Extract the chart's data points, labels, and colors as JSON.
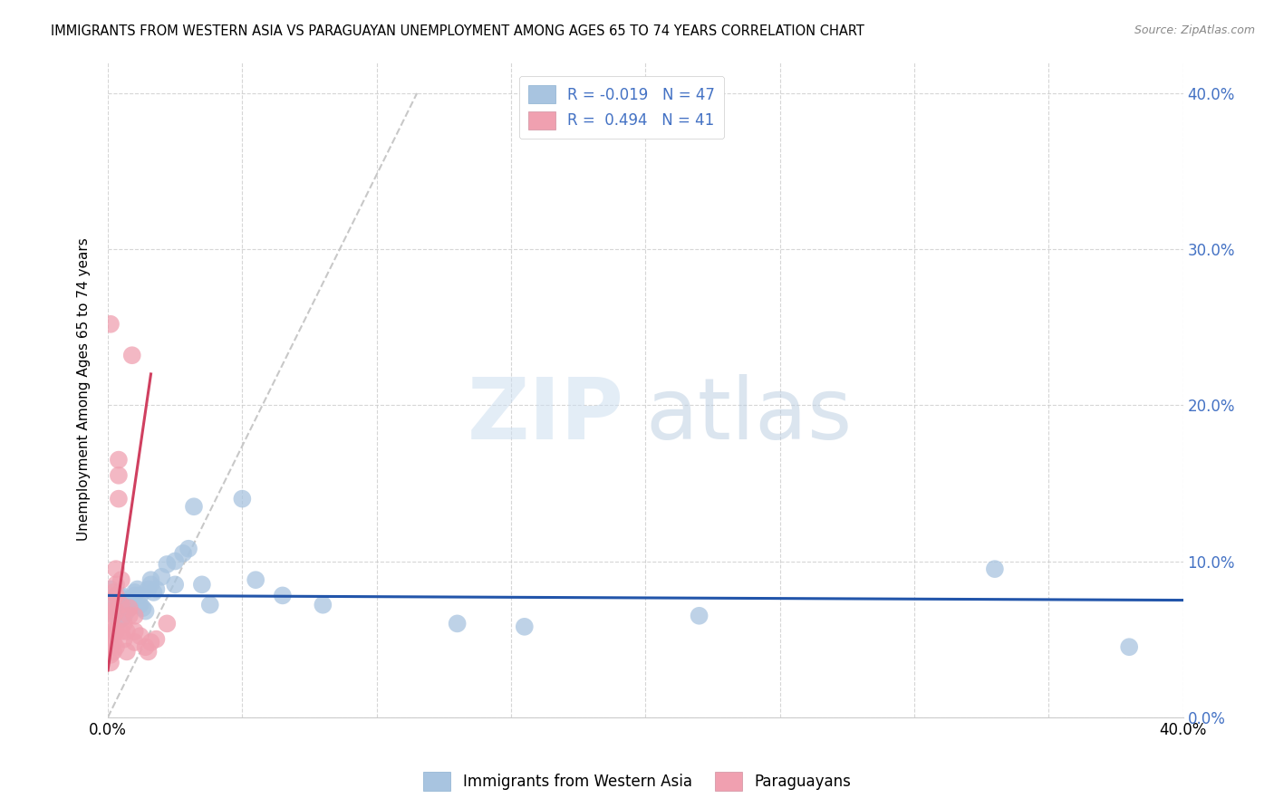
{
  "title": "IMMIGRANTS FROM WESTERN ASIA VS PARAGUAYAN UNEMPLOYMENT AMONG AGES 65 TO 74 YEARS CORRELATION CHART",
  "source": "Source: ZipAtlas.com",
  "ylabel": "Unemployment Among Ages 65 to 74 years",
  "xlim": [
    0.0,
    0.4
  ],
  "ylim": [
    0.0,
    0.42
  ],
  "yticks": [
    0.0,
    0.1,
    0.2,
    0.3,
    0.4
  ],
  "xtick_positions": [
    0.0,
    0.05,
    0.1,
    0.15,
    0.2,
    0.25,
    0.3,
    0.35,
    0.4
  ],
  "xtick_labels": [
    "0.0%",
    "",
    "",
    "",
    "",
    "",
    "",
    "",
    "40.0%"
  ],
  "color_blue": "#a8c4e0",
  "color_pink": "#f0a0b0",
  "trendline_blue_color": "#2255aa",
  "trendline_pink_color": "#d04060",
  "trendline_dashed_color": "#c8c8c8",
  "watermark_zip": "ZIP",
  "watermark_atlas": "atlas",
  "blue_scatter": [
    [
      0.001,
      0.082
    ],
    [
      0.002,
      0.075
    ],
    [
      0.002,
      0.068
    ],
    [
      0.003,
      0.072
    ],
    [
      0.003,
      0.065
    ],
    [
      0.004,
      0.078
    ],
    [
      0.004,
      0.07
    ],
    [
      0.005,
      0.078
    ],
    [
      0.005,
      0.068
    ],
    [
      0.005,
      0.063
    ],
    [
      0.006,
      0.072
    ],
    [
      0.006,
      0.065
    ],
    [
      0.007,
      0.07
    ],
    [
      0.007,
      0.068
    ],
    [
      0.008,
      0.075
    ],
    [
      0.008,
      0.07
    ],
    [
      0.009,
      0.075
    ],
    [
      0.01,
      0.08
    ],
    [
      0.01,
      0.078
    ],
    [
      0.011,
      0.082
    ],
    [
      0.012,
      0.078
    ],
    [
      0.012,
      0.072
    ],
    [
      0.013,
      0.07
    ],
    [
      0.014,
      0.068
    ],
    [
      0.015,
      0.082
    ],
    [
      0.016,
      0.088
    ],
    [
      0.016,
      0.085
    ],
    [
      0.017,
      0.08
    ],
    [
      0.018,
      0.082
    ],
    [
      0.02,
      0.09
    ],
    [
      0.022,
      0.098
    ],
    [
      0.025,
      0.1
    ],
    [
      0.025,
      0.085
    ],
    [
      0.028,
      0.105
    ],
    [
      0.03,
      0.108
    ],
    [
      0.032,
      0.135
    ],
    [
      0.035,
      0.085
    ],
    [
      0.038,
      0.072
    ],
    [
      0.05,
      0.14
    ],
    [
      0.055,
      0.088
    ],
    [
      0.065,
      0.078
    ],
    [
      0.08,
      0.072
    ],
    [
      0.13,
      0.06
    ],
    [
      0.155,
      0.058
    ],
    [
      0.22,
      0.065
    ],
    [
      0.33,
      0.095
    ],
    [
      0.38,
      0.045
    ]
  ],
  "pink_scatter": [
    [
      0.001,
      0.068
    ],
    [
      0.001,
      0.06
    ],
    [
      0.001,
      0.052
    ],
    [
      0.001,
      0.045
    ],
    [
      0.001,
      0.04
    ],
    [
      0.001,
      0.035
    ],
    [
      0.002,
      0.08
    ],
    [
      0.002,
      0.075
    ],
    [
      0.002,
      0.065
    ],
    [
      0.002,
      0.055
    ],
    [
      0.002,
      0.048
    ],
    [
      0.002,
      0.042
    ],
    [
      0.003,
      0.095
    ],
    [
      0.003,
      0.085
    ],
    [
      0.003,
      0.078
    ],
    [
      0.003,
      0.068
    ],
    [
      0.003,
      0.055
    ],
    [
      0.003,
      0.045
    ],
    [
      0.004,
      0.165
    ],
    [
      0.004,
      0.155
    ],
    [
      0.004,
      0.14
    ],
    [
      0.005,
      0.088
    ],
    [
      0.005,
      0.072
    ],
    [
      0.005,
      0.055
    ],
    [
      0.006,
      0.06
    ],
    [
      0.006,
      0.05
    ],
    [
      0.007,
      0.055
    ],
    [
      0.007,
      0.042
    ],
    [
      0.008,
      0.07
    ],
    [
      0.008,
      0.065
    ],
    [
      0.009,
      0.232
    ],
    [
      0.01,
      0.065
    ],
    [
      0.01,
      0.055
    ],
    [
      0.01,
      0.048
    ],
    [
      0.012,
      0.052
    ],
    [
      0.014,
      0.045
    ],
    [
      0.015,
      0.042
    ],
    [
      0.016,
      0.048
    ],
    [
      0.018,
      0.05
    ],
    [
      0.022,
      0.06
    ],
    [
      0.001,
      0.252
    ]
  ],
  "blue_trend_x": [
    0.0,
    0.4
  ],
  "blue_trend_y": [
    0.078,
    0.075
  ],
  "pink_trend_x": [
    0.0,
    0.016
  ],
  "pink_trend_y": [
    0.03,
    0.22
  ],
  "dashed_trend_x": [
    0.0,
    0.115
  ],
  "dashed_trend_y": [
    0.0,
    0.4
  ]
}
